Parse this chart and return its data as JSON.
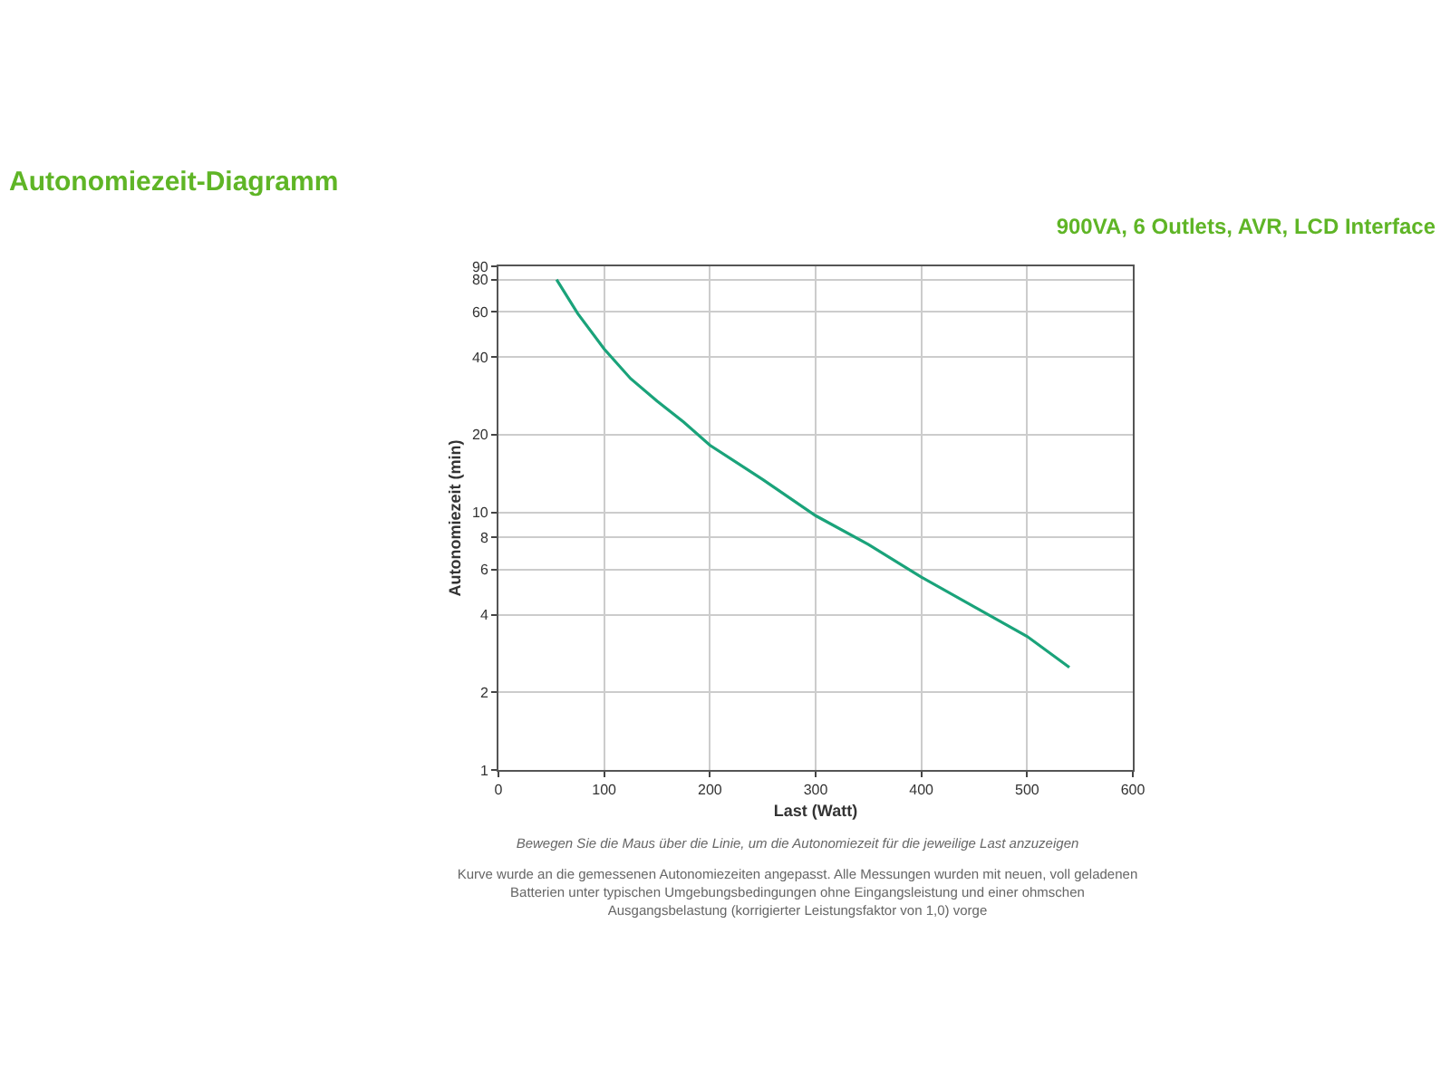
{
  "chart_data": {
    "type": "line",
    "title": "Autonomiezeit-Diagramm",
    "subtitle": "900VA, 6 Outlets, AVR, LCD Interface",
    "xlabel": "Last (Watt)",
    "ylabel": "Autonomiezeit (min)",
    "x": [
      55,
      75,
      100,
      125,
      150,
      175,
      200,
      250,
      300,
      350,
      400,
      450,
      500,
      540
    ],
    "series": [
      {
        "color": "#1aa37a",
        "values": [
          80,
          59,
          43,
          33,
          27,
          22.4,
          18.2,
          13.4,
          9.7,
          7.5,
          5.6,
          4.3,
          3.3,
          2.5
        ]
      }
    ],
    "xlim": [
      0,
      600
    ],
    "xticks": [
      0,
      100,
      200,
      300,
      400,
      500,
      600
    ],
    "ylim": [
      1,
      90
    ],
    "yticks": [
      1,
      2,
      4,
      6,
      8,
      10,
      20,
      40,
      60,
      80,
      90
    ],
    "log": true,
    "grid": true,
    "annotations": [
      "Bewegen Sie die Maus über die Linie, um die Autonomiezeit für die jeweilige Last anzuzeigen",
      "Kurve wurde an die gemessenen Autonomiezeiten angepasst. Alle Messungen wurden mit neuen, voll geladenen Batterien unter typischen Umgebungsbedingungen ohne Eingangsleistung und einer ohmschen Ausgangsbelastung (korrigierter Leistungsfaktor von 1,0) vorge"
    ]
  }
}
